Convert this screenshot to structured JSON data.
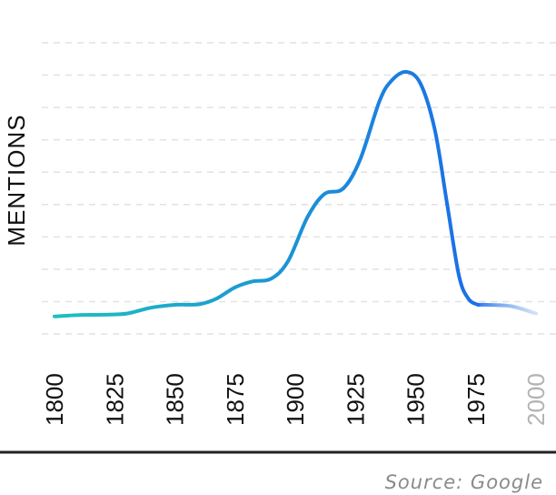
{
  "chart_data": {
    "type": "line",
    "ylabel": "MENTIONS",
    "xlabel": "",
    "x_ticks": [
      "1800",
      "1825",
      "1850",
      "1875",
      "1900",
      "1925",
      "1950",
      "1975",
      "2000"
    ],
    "x_range": [
      1800,
      2000
    ],
    "y_range": [
      0,
      100
    ],
    "grid": true,
    "series": [
      {
        "name": "",
        "x": [
          1800,
          1810,
          1820,
          1830,
          1840,
          1850,
          1860,
          1867,
          1875,
          1882,
          1890,
          1897,
          1905,
          1912,
          1920,
          1927,
          1935,
          1940,
          1946,
          1952,
          1958,
          1963,
          1968,
          1972,
          1976,
          1980,
          1990,
          2000
        ],
        "y": [
          6,
          6.5,
          6.6,
          7,
          9,
          10,
          10.2,
          12,
          16,
          18,
          19,
          25,
          40,
          48,
          50,
          60,
          80,
          87,
          90,
          86,
          70,
          45,
          20,
          12,
          10,
          10,
          9.5,
          7
        ],
        "projected_from": 1976
      }
    ],
    "colors": {
      "start": "#1ec0c0",
      "end": "#1a6ee8",
      "projection": "#a8c4f2"
    }
  },
  "source": "Source: Google"
}
